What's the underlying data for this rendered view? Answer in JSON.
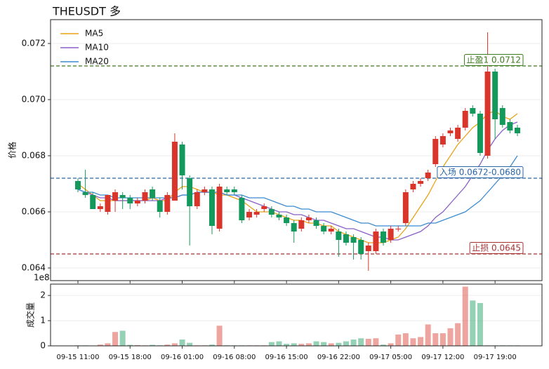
{
  "chart_data": {
    "type": "candlestick",
    "title": "THEUSDT  多",
    "ylabel": "价格",
    "volume_label": "成交量",
    "volume_offset": "1e8",
    "up_color": "#d9352b",
    "down_color": "#14995c",
    "grid": true,
    "legend": "upper left",
    "ylim": [
      0.06355,
      0.07285
    ],
    "yticks": [
      0.064,
      0.066,
      0.068,
      {
        "value": 0.07,
        "label": "0.070"
      },
      0.072
    ],
    "volume_ylim": [
      0,
      2.45
    ],
    "volume_yticks": [
      0,
      1,
      2
    ],
    "categories": [
      "09-15 11:00",
      null,
      null,
      null,
      null,
      null,
      null,
      "09-15 18:00",
      null,
      null,
      null,
      null,
      null,
      null,
      "09-16 01:00",
      null,
      null,
      null,
      null,
      null,
      null,
      "09-16 08:00",
      null,
      null,
      null,
      null,
      null,
      null,
      "09-16 15:00",
      null,
      null,
      null,
      null,
      null,
      null,
      "09-16 22:00",
      null,
      null,
      null,
      null,
      null,
      null,
      "09-17 05:00",
      null,
      null,
      null,
      null,
      null,
      null,
      "09-17 12:00",
      null,
      null,
      null,
      null,
      null,
      null,
      "09-17 19:00",
      null,
      null,
      null
    ],
    "open": [
      0.0671,
      0.0667,
      0.0666,
      0.0661,
      0.066,
      0.0664,
      0.0666,
      0.0665,
      0.0663,
      0.0664,
      0.0668,
      0.0664,
      0.066,
      0.0664,
      0.0684,
      0.0672,
      0.0662,
      0.0667,
      0.0668,
      0.0654,
      0.0668,
      0.0668,
      0.0665,
      0.0658,
      0.0659,
      0.0661,
      0.0661,
      0.0659,
      0.0658,
      0.0656,
      0.0654,
      0.0657,
      0.0657,
      0.0655,
      0.0653,
      0.0653,
      0.0652,
      0.0651,
      0.065,
      0.0646,
      0.0646,
      0.0653,
      0.065,
      0.0654,
      0.0656,
      0.0668,
      0.067,
      0.0672,
      0.0677,
      0.0684,
      0.0688,
      0.0686,
      0.069,
      0.0697,
      0.0695,
      0.068,
      0.071,
      0.0697,
      0.0692,
      0.069
    ],
    "high": [
      0.0672,
      0.0675,
      0.0667,
      0.0663,
      0.0666,
      0.0668,
      0.0667,
      0.0666,
      0.0665,
      0.0668,
      0.0669,
      0.0665,
      0.0667,
      0.0688,
      0.0685,
      0.0673,
      0.0668,
      0.0669,
      0.0669,
      0.067,
      0.0669,
      0.0669,
      0.0666,
      0.0661,
      0.0661,
      0.0663,
      0.0662,
      0.066,
      0.0659,
      0.0657,
      0.0658,
      0.0659,
      0.0658,
      0.0656,
      0.0655,
      0.0654,
      0.0653,
      0.0652,
      0.0651,
      0.0649,
      0.0654,
      0.0654,
      0.0655,
      0.0655,
      0.0668,
      0.0671,
      0.0672,
      0.0675,
      0.0687,
      0.0688,
      0.069,
      0.0691,
      0.0697,
      0.0698,
      0.0696,
      0.0724,
      0.0711,
      0.0698,
      0.0693,
      0.0691
    ],
    "low": [
      0.0667,
      0.0665,
      0.0661,
      0.066,
      0.0659,
      0.066,
      0.0661,
      0.0661,
      0.0662,
      0.0663,
      0.0664,
      0.0658,
      0.0659,
      0.0664,
      0.0668,
      0.0648,
      0.0661,
      0.0666,
      0.0652,
      0.0653,
      0.0666,
      0.0666,
      0.0656,
      0.0657,
      0.0658,
      0.066,
      0.0658,
      0.0657,
      0.0655,
      0.0649,
      0.0653,
      0.0656,
      0.0654,
      0.0652,
      0.0652,
      0.0644,
      0.0648,
      0.0643,
      0.0643,
      0.0639,
      0.0645,
      0.0648,
      0.0649,
      0.0653,
      0.0655,
      0.0667,
      0.0669,
      0.0671,
      0.0676,
      0.0683,
      0.0687,
      0.0685,
      0.0689,
      0.0694,
      0.068,
      0.0679,
      0.0686,
      0.069,
      0.0688,
      0.0687
    ],
    "close": [
      0.0668,
      0.0666,
      0.0661,
      0.0662,
      0.0666,
      0.0667,
      0.0665,
      0.0663,
      0.0664,
      0.0667,
      0.0665,
      0.066,
      0.0666,
      0.0685,
      0.0673,
      0.0662,
      0.0667,
      0.0668,
      0.0655,
      0.0669,
      0.0667,
      0.0667,
      0.0657,
      0.066,
      0.066,
      0.0662,
      0.0659,
      0.0658,
      0.0656,
      0.0653,
      0.0657,
      0.0658,
      0.0655,
      0.0653,
      0.0654,
      0.065,
      0.0649,
      0.0649,
      0.0645,
      0.0648,
      0.0653,
      0.0649,
      0.0654,
      0.0654,
      0.0667,
      0.067,
      0.0671,
      0.0674,
      0.0686,
      0.0687,
      0.0689,
      0.069,
      0.0696,
      0.0695,
      0.0681,
      0.071,
      0.0693,
      0.0691,
      0.0689,
      0.0688
    ],
    "volume": [
      0.02,
      0.02,
      0.01,
      0.05,
      0.1,
      0.55,
      0.6,
      0.04,
      0.03,
      0.02,
      0.04,
      0.02,
      0.05,
      0.1,
      0.25,
      0.12,
      0.02,
      0.02,
      0.05,
      0.8,
      0.02,
      0.02,
      0.02,
      0.02,
      0.02,
      0.02,
      0.15,
      0.18,
      0.08,
      0.1,
      0.08,
      0.1,
      0.18,
      0.15,
      0.1,
      0.12,
      0.18,
      0.25,
      0.3,
      0.28,
      0.3,
      0.05,
      0.1,
      0.45,
      0.5,
      0.3,
      0.35,
      0.85,
      0.5,
      0.5,
      0.7,
      0.9,
      2.35,
      1.8,
      1.7,
      0.02,
      0.02,
      0.02,
      0.02,
      0.02
    ],
    "series": [
      {
        "name": "MA5",
        "color": "#e8a317",
        "values": [
          0.067,
          0.0668,
          0.0666,
          0.0664,
          0.0664,
          0.0664,
          0.0664,
          0.0664,
          0.0664,
          0.0664,
          0.0665,
          0.0664,
          0.0664,
          0.0667,
          0.0669,
          0.0669,
          0.0668,
          0.0667,
          0.0667,
          0.0666,
          0.0666,
          0.0665,
          0.0664,
          0.0662,
          0.066,
          0.066,
          0.066,
          0.0659,
          0.0658,
          0.0657,
          0.0657,
          0.0656,
          0.0656,
          0.0655,
          0.0655,
          0.0653,
          0.0652,
          0.0651,
          0.065,
          0.0649,
          0.0649,
          0.0649,
          0.065,
          0.0651,
          0.0654,
          0.0658,
          0.0662,
          0.0666,
          0.0671,
          0.0676,
          0.068,
          0.0684,
          0.0687,
          0.069,
          0.0692,
          0.0695,
          0.0696,
          0.0694,
          0.0693,
          0.0695
        ]
      },
      {
        "name": "MA10",
        "color": "#8a5fc8",
        "values": [
          0.0668,
          0.0667,
          0.0666,
          0.0665,
          0.0665,
          0.0664,
          0.0664,
          0.0664,
          0.0664,
          0.0664,
          0.0664,
          0.0664,
          0.0665,
          0.0665,
          0.0666,
          0.0666,
          0.0667,
          0.0667,
          0.0667,
          0.0667,
          0.0666,
          0.0666,
          0.0665,
          0.0664,
          0.0663,
          0.0662,
          0.0661,
          0.066,
          0.066,
          0.0659,
          0.0659,
          0.0658,
          0.0657,
          0.0657,
          0.0656,
          0.0655,
          0.0654,
          0.0654,
          0.0653,
          0.0652,
          0.0651,
          0.0651,
          0.065,
          0.065,
          0.0651,
          0.0652,
          0.0653,
          0.0655,
          0.0658,
          0.066,
          0.0663,
          0.0666,
          0.0669,
          0.0673,
          0.0677,
          0.0682,
          0.0686,
          0.0689,
          0.0691,
          0.0692
        ]
      },
      {
        "name": "MA20",
        "color": "#3b8bd0",
        "values": [
          0.0668,
          0.0667,
          0.0667,
          0.0666,
          0.0666,
          0.0665,
          0.0665,
          0.0665,
          0.0665,
          0.0665,
          0.0665,
          0.0665,
          0.0665,
          0.0665,
          0.0666,
          0.0666,
          0.0667,
          0.0667,
          0.0667,
          0.0667,
          0.0666,
          0.0666,
          0.0666,
          0.0665,
          0.0665,
          0.0665,
          0.0664,
          0.0663,
          0.0662,
          0.0662,
          0.0661,
          0.0661,
          0.066,
          0.066,
          0.066,
          0.0659,
          0.0658,
          0.0657,
          0.0656,
          0.0656,
          0.0655,
          0.0655,
          0.0655,
          0.0655,
          0.0655,
          0.0655,
          0.0655,
          0.0656,
          0.0656,
          0.0657,
          0.0658,
          0.0659,
          0.066,
          0.0662,
          0.0664,
          0.0667,
          0.067,
          0.0673,
          0.0676,
          0.068
        ]
      }
    ],
    "levels": [
      {
        "label": "止盈1 0.0712",
        "value": 0.0712,
        "color": "#3e7a1e"
      },
      {
        "label": "入场 0.0672-0.0680",
        "value": 0.0672,
        "color": "#2a66a8"
      },
      {
        "label": "止损 0.0645",
        "value": 0.0645,
        "color": "#a83232"
      }
    ]
  }
}
